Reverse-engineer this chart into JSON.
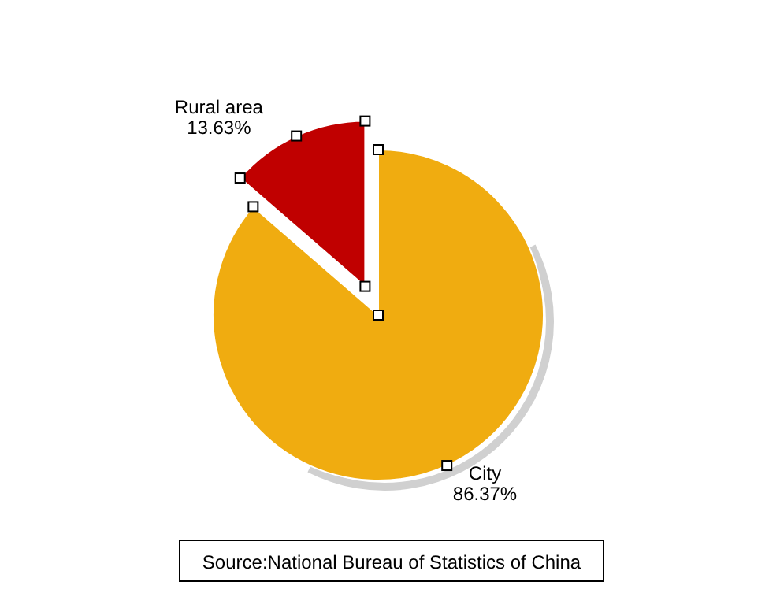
{
  "chart_data": {
    "type": "pie",
    "categories": [
      "City",
      "Rural area"
    ],
    "values": [
      86.37,
      13.63
    ],
    "colors": [
      "#f0ac10",
      "#c00000"
    ],
    "value_labels": [
      "86.37%",
      "13.63%"
    ],
    "annotations": [
      "Source:National Bureau of Statistics of China"
    ]
  }
}
